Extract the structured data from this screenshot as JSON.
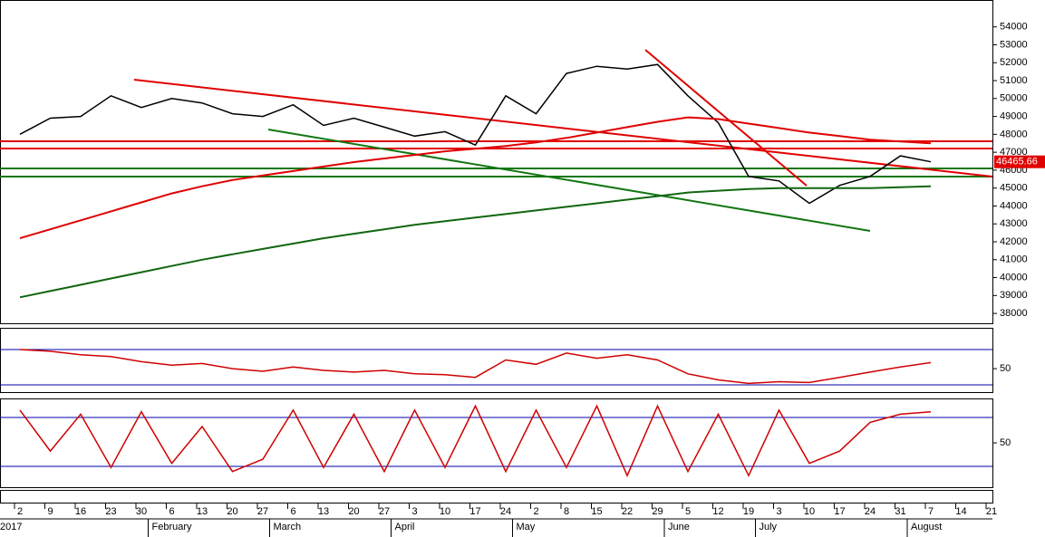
{
  "chart_data": [
    {
      "type": "line",
      "ylim": [
        37500,
        55400
      ],
      "yticks": [
        38000,
        39000,
        40000,
        41000,
        42000,
        43000,
        44000,
        45000,
        46000,
        47000,
        48000,
        49000,
        50000,
        51000,
        52000,
        53000,
        54000
      ],
      "series": [
        {
          "color": "#000000",
          "values": [
            48000,
            48900,
            49000,
            50150,
            49500,
            50000,
            49750,
            49150,
            49000,
            49650,
            48500,
            48900,
            48400,
            47900,
            48150,
            47400,
            50150,
            49150,
            51400,
            51800,
            51650,
            51900,
            50150,
            48650,
            45650,
            45400,
            44150,
            45150,
            45650,
            46800,
            46465.66,
            null,
            null
          ]
        },
        {
          "color": "#116611",
          "values": [
            38900,
            39250,
            39600,
            39950,
            40300,
            40650,
            41000,
            41300,
            41600,
            41900,
            42200,
            42450,
            42700,
            42950,
            43150,
            43350,
            43550,
            43750,
            43950,
            44150,
            44350,
            44550,
            44750,
            44850,
            44950,
            45000,
            45000,
            45000,
            45000,
            45050,
            45100,
            null,
            null
          ]
        },
        {
          "color": "#e00000",
          "values": [
            42200,
            42700,
            43200,
            43700,
            44200,
            44700,
            45100,
            45450,
            45700,
            45950,
            46200,
            46450,
            46650,
            46850,
            47050,
            47200,
            47350,
            47550,
            47800,
            48100,
            48400,
            48700,
            48950,
            48850,
            48600,
            48350,
            48100,
            47900,
            47700,
            47600,
            47500,
            null,
            null
          ]
        }
      ],
      "last_price": 46465.66
    },
    {
      "type": "line",
      "ylim": [
        24,
        95
      ],
      "yticks": [
        50
      ],
      "series": [
        {
          "color": "#d00000",
          "values": [
            72,
            70,
            66,
            64,
            58,
            54,
            56,
            50,
            47,
            52,
            48,
            46,
            48,
            44,
            43,
            40,
            60,
            55,
            68,
            62,
            66,
            60,
            44,
            37,
            33,
            35,
            34,
            40,
            46,
            52,
            57,
            null,
            null
          ]
        }
      ]
    },
    {
      "type": "line",
      "ylim": [
        -3,
        102
      ],
      "yticks": [
        50
      ],
      "series": [
        {
          "color": "#d00000",
          "values": [
            90,
            40,
            85,
            20,
            88,
            25,
            70,
            15,
            30,
            90,
            20,
            85,
            15,
            90,
            20,
            95,
            15,
            90,
            20,
            95,
            10,
            95,
            15,
            85,
            10,
            90,
            25,
            40,
            75,
            85,
            88,
            null,
            null
          ]
        }
      ]
    }
  ],
  "x_axis": {
    "categories": [
      "2",
      "9",
      "16",
      "23",
      "30",
      "6",
      "13",
      "20",
      "27",
      "6",
      "13",
      "20",
      "27",
      "3",
      "10",
      "17",
      "24",
      "2",
      "8",
      "15",
      "22",
      "29",
      "5",
      "12",
      "19",
      "3",
      "10",
      "17",
      "24",
      "31",
      "7",
      "14",
      "21"
    ],
    "months": [
      "2017",
      null,
      null,
      null,
      null,
      "February",
      null,
      null,
      null,
      "March",
      null,
      null,
      null,
      "April",
      null,
      null,
      null,
      "May",
      null,
      null,
      null,
      null,
      "June",
      null,
      null,
      "July",
      null,
      null,
      null,
      null,
      "August",
      null,
      null
    ]
  }
}
